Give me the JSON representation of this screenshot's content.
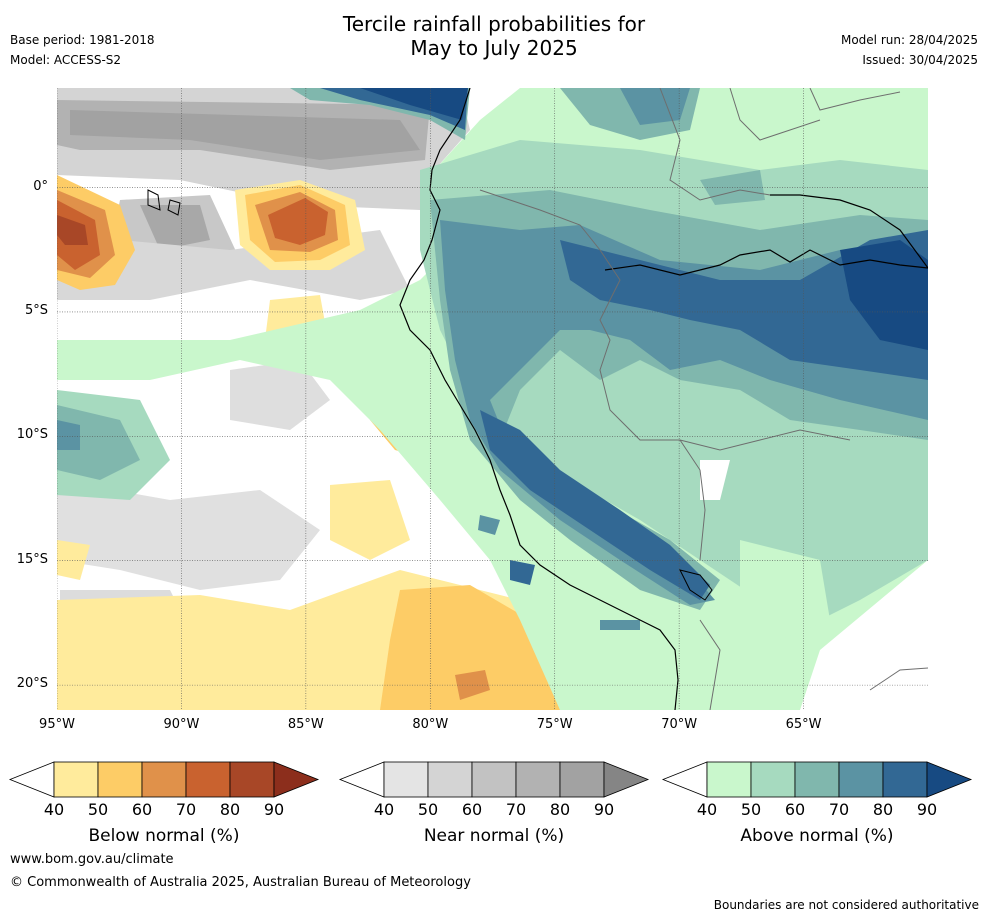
{
  "header": {
    "title_line1": "Tercile rainfall probabilities for",
    "title_line2": "May to July 2025",
    "base_period": "Base period: 1981-2018",
    "model": "Model: ACCESS-S2",
    "model_run": "Model run: 28/04/2025",
    "issued": "Issued: 30/04/2025"
  },
  "map": {
    "lat_labels": [
      "0°",
      "5°S",
      "10°S",
      "15°S",
      "20°S"
    ],
    "lon_labels": [
      "95°W",
      "90°W",
      "85°W",
      "80°W",
      "75°W",
      "70°W",
      "65°W"
    ],
    "lon_range": [
      -95,
      -60
    ],
    "lat_range": [
      -21,
      4
    ]
  },
  "colorbars": [
    {
      "caption": "Below normal (%)",
      "ticks": [
        "40",
        "50",
        "60",
        "70",
        "80",
        "90"
      ],
      "colors": [
        "#ffeb9c",
        "#fdcc66",
        "#e0914a",
        "#c9622f",
        "#a84727",
        "#8c2e1c"
      ]
    },
    {
      "caption": "Near normal (%)",
      "ticks": [
        "40",
        "50",
        "60",
        "70",
        "80",
        "90"
      ],
      "colors": [
        "#e4e4e4",
        "#d4d4d4",
        "#c2c2c2",
        "#b2b2b2",
        "#a2a2a2",
        "#858585"
      ]
    },
    {
      "caption": "Above normal (%)",
      "ticks": [
        "40",
        "50",
        "60",
        "70",
        "80",
        "90"
      ],
      "colors": [
        "#c9f7cc",
        "#a6dabf",
        "#80b7ad",
        "#5b93a3",
        "#326894",
        "#174a82"
      ]
    }
  ],
  "footer": {
    "website": "www.bom.gov.au/climate",
    "copyright": "© Commonwealth of Australia 2025, Australian Bureau of Meteorology",
    "disclaimer": "Boundaries are not considered authoritative"
  }
}
